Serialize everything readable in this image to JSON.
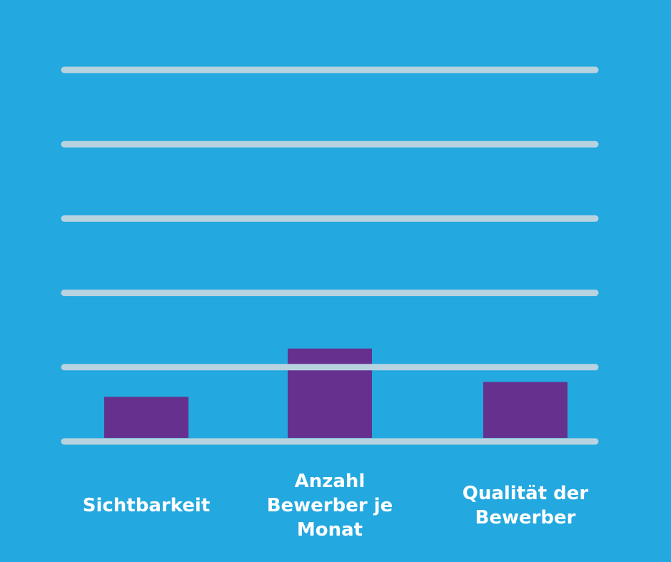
{
  "chart_data": {
    "type": "bar",
    "categories": [
      "Sichtbarkeit",
      "Anzahl Bewerber je Monat",
      "Qualität der Bewerber"
    ],
    "values": [
      0.6,
      1.25,
      0.8
    ],
    "color": "#66308e",
    "grid_color": "#b8d3e0",
    "ylim": [
      0,
      5
    ],
    "yticks": [
      0,
      1,
      2,
      3,
      4,
      5
    ],
    "grid": true
  }
}
